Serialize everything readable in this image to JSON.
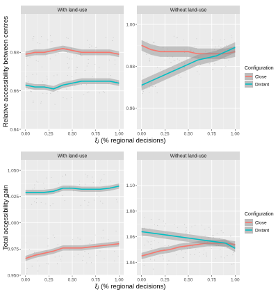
{
  "chart_data": [
    {
      "type": "line",
      "ylabel": "Relative accessibility between centres",
      "xlabel": "ξᵢ (% regional decisions)",
      "x_ticks": [
        "0.00",
        "0.25",
        "0.50",
        "0.75",
        "1.00"
      ],
      "xlim": [
        0,
        1
      ],
      "legend": {
        "title": "Configuration",
        "placement": "right",
        "entries": [
          {
            "name": "Close",
            "color": "#f8766d"
          },
          {
            "name": "Distant",
            "color": "#00bfc4"
          }
        ]
      },
      "facets": [
        {
          "title": "With land-use",
          "ylim": [
            0.64,
            0.7
          ],
          "y_ticks": [
            0.64,
            0.66,
            0.68
          ],
          "y_tick_labels": [
            "0.64",
            "0.66",
            "0.68"
          ],
          "series": [
            {
              "name": "Close",
              "color": "#f8766d",
              "x": [
                0,
                0.1,
                0.2,
                0.3,
                0.4,
                0.5,
                0.6,
                0.7,
                0.8,
                0.9,
                1.0
              ],
              "y": [
                0.679,
                0.68,
                0.68,
                0.681,
                0.682,
                0.681,
                0.68,
                0.68,
                0.68,
                0.68,
                0.679
              ],
              "band": 0.0015
            },
            {
              "name": "Distant",
              "color": "#00bfc4",
              "x": [
                0,
                0.1,
                0.2,
                0.3,
                0.4,
                0.5,
                0.6,
                0.7,
                0.8,
                0.9,
                1.0
              ],
              "y": [
                0.663,
                0.662,
                0.662,
                0.661,
                0.663,
                0.664,
                0.665,
                0.665,
                0.665,
                0.665,
                0.664
              ],
              "band": 0.0015
            }
          ]
        },
        {
          "title": "Without land-use",
          "ylim": [
            0.95,
            1.005
          ],
          "y_ticks": [
            0.96,
            0.98,
            1.0
          ],
          "y_tick_labels": [
            "0.96",
            "0.98",
            "1.00"
          ],
          "series": [
            {
              "name": "Close",
              "color": "#f8766d",
              "x": [
                0,
                0.1,
                0.2,
                0.3,
                0.4,
                0.5,
                0.6,
                0.7,
                0.8,
                0.9,
                1.0
              ],
              "y": [
                0.99,
                0.988,
                0.987,
                0.987,
                0.987,
                0.987,
                0.986,
                0.986,
                0.986,
                0.986,
                0.987
              ],
              "band": 0.0025
            },
            {
              "name": "Distant",
              "color": "#00bfc4",
              "x": [
                0,
                0.1,
                0.2,
                0.3,
                0.4,
                0.5,
                0.6,
                0.7,
                0.8,
                0.9,
                1.0
              ],
              "y": [
                0.971,
                0.973,
                0.975,
                0.977,
                0.979,
                0.981,
                0.983,
                0.984,
                0.985,
                0.987,
                0.989
              ],
              "band": 0.0025
            }
          ]
        }
      ]
    },
    {
      "type": "line",
      "ylabel": "Total accessibility gain",
      "xlabel": "ξᵢ (% regional decisions)",
      "x_ticks": [
        "0.00",
        "0.25",
        "0.50",
        "0.75",
        "1.00"
      ],
      "xlim": [
        0,
        1
      ],
      "legend": {
        "title": "Configuration",
        "placement": "right",
        "entries": [
          {
            "name": "Close",
            "color": "#f8766d"
          },
          {
            "name": "Distant",
            "color": "#00bfc4"
          }
        ]
      },
      "facets": [
        {
          "title": "With land-use",
          "ylim": [
            0.95,
            1.06
          ],
          "y_ticks": [
            0.95,
            0.975,
            1.0,
            1.025,
            1.05
          ],
          "y_tick_labels": [
            "0.950",
            "0.975",
            "1.000",
            "1.025",
            "1.050"
          ],
          "series": [
            {
              "name": "Close",
              "color": "#f8766d",
              "x": [
                0,
                0.1,
                0.2,
                0.3,
                0.4,
                0.5,
                0.6,
                0.7,
                0.8,
                0.9,
                1.0
              ],
              "y": [
                0.966,
                0.969,
                0.971,
                0.973,
                0.976,
                0.976,
                0.976,
                0.977,
                0.978,
                0.979,
                0.98
              ],
              "band": 0.0025
            },
            {
              "name": "Distant",
              "color": "#00bfc4",
              "x": [
                0,
                0.1,
                0.2,
                0.3,
                0.4,
                0.5,
                0.6,
                0.7,
                0.8,
                0.9,
                1.0
              ],
              "y": [
                1.029,
                1.029,
                1.029,
                1.03,
                1.033,
                1.033,
                1.032,
                1.032,
                1.032,
                1.033,
                1.035
              ],
              "band": 0.0025
            }
          ]
        },
        {
          "title": "Without land-use",
          "ylim": [
            1.03,
            1.12
          ],
          "y_ticks": [
            1.04,
            1.06,
            1.08,
            1.1
          ],
          "y_tick_labels": [
            "1.04",
            "1.06",
            "1.08",
            "1.10"
          ],
          "series": [
            {
              "name": "Close",
              "color": "#f8766d",
              "x": [
                0,
                0.1,
                0.2,
                0.3,
                0.4,
                0.5,
                0.6,
                0.7,
                0.8,
                0.9,
                1.0
              ],
              "y": [
                1.045,
                1.047,
                1.049,
                1.05,
                1.052,
                1.053,
                1.054,
                1.055,
                1.055,
                1.055,
                1.054
              ],
              "band": 0.0025
            },
            {
              "name": "Distant",
              "color": "#00bfc4",
              "x": [
                0,
                0.1,
                0.2,
                0.3,
                0.4,
                0.5,
                0.6,
                0.7,
                0.8,
                0.9,
                1.0
              ],
              "y": [
                1.064,
                1.063,
                1.062,
                1.061,
                1.06,
                1.059,
                1.058,
                1.057,
                1.056,
                1.055,
                1.051
              ],
              "band": 0.003
            }
          ]
        }
      ]
    }
  ]
}
